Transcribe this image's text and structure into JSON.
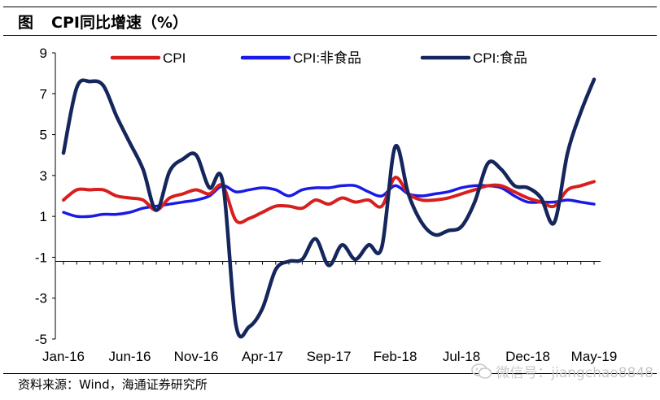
{
  "figure": {
    "label": "图",
    "title": "CPI同比增速（%）",
    "source": "资料来源：Wind，海通证券研究所",
    "watermark": "微信号：jiangchao8848"
  },
  "chart_data": {
    "type": "line",
    "x": [
      "Jan-16",
      "Feb-16",
      "Mar-16",
      "Apr-16",
      "May-16",
      "Jun-16",
      "Jul-16",
      "Aug-16",
      "Sep-16",
      "Oct-16",
      "Nov-16",
      "Dec-16",
      "Jan-17",
      "Feb-17",
      "Mar-17",
      "Apr-17",
      "May-17",
      "Jun-17",
      "Jul-17",
      "Aug-17",
      "Sep-17",
      "Oct-17",
      "Nov-17",
      "Dec-17",
      "Jan-18",
      "Feb-18",
      "Mar-18",
      "Apr-18",
      "May-18",
      "Jun-18",
      "Jul-18",
      "Aug-18",
      "Sep-18",
      "Oct-18",
      "Nov-18",
      "Dec-18",
      "Jan-19",
      "Feb-19",
      "Mar-19",
      "Apr-19",
      "May-19"
    ],
    "xticks": [
      "Jan-16",
      "Jun-16",
      "Nov-16",
      "Apr-17",
      "Sep-17",
      "Feb-18",
      "Jul-18",
      "Dec-18",
      "May-19"
    ],
    "ylim": [
      -5,
      9
    ],
    "yticks": [
      9,
      7,
      5,
      3,
      1,
      -1,
      -3,
      -5
    ],
    "legend_position": "top",
    "grid": false,
    "series": [
      {
        "name": "CPI",
        "color": "#d81e1e",
        "values": [
          1.8,
          2.3,
          2.3,
          2.3,
          2.0,
          1.9,
          1.8,
          1.3,
          1.9,
          2.1,
          2.3,
          2.1,
          2.5,
          0.8,
          0.9,
          1.2,
          1.5,
          1.5,
          1.4,
          1.8,
          1.6,
          1.9,
          1.7,
          1.8,
          1.5,
          2.9,
          2.1,
          1.8,
          1.8,
          1.9,
          2.1,
          2.3,
          2.5,
          2.5,
          2.2,
          1.9,
          1.7,
          1.5,
          2.3,
          2.5,
          2.7
        ]
      },
      {
        "name": "CPI:非食品",
        "color": "#1a1ae6",
        "values": [
          1.2,
          1.0,
          1.0,
          1.1,
          1.1,
          1.2,
          1.4,
          1.5,
          1.6,
          1.7,
          1.8,
          2.0,
          2.5,
          2.2,
          2.3,
          2.4,
          2.3,
          2.0,
          2.3,
          2.4,
          2.4,
          2.5,
          2.5,
          2.2,
          2.0,
          2.5,
          2.1,
          2.0,
          2.1,
          2.2,
          2.4,
          2.5,
          2.5,
          2.4,
          2.0,
          1.7,
          1.7,
          1.7,
          1.8,
          1.7,
          1.6
        ]
      },
      {
        "name": "CPI:食品",
        "color": "#14265c",
        "values": [
          4.1,
          7.3,
          7.6,
          7.4,
          5.9,
          4.6,
          3.3,
          1.3,
          3.2,
          3.8,
          4.0,
          2.4,
          2.7,
          -4.3,
          -4.4,
          -3.5,
          -1.6,
          -1.2,
          -1.1,
          -0.1,
          -1.4,
          -0.4,
          -1.1,
          -0.4,
          -0.5,
          4.4,
          2.1,
          0.7,
          0.1,
          0.3,
          0.5,
          1.7,
          3.6,
          3.3,
          2.5,
          2.4,
          1.9,
          0.7,
          4.1,
          6.1,
          7.7
        ]
      }
    ]
  }
}
